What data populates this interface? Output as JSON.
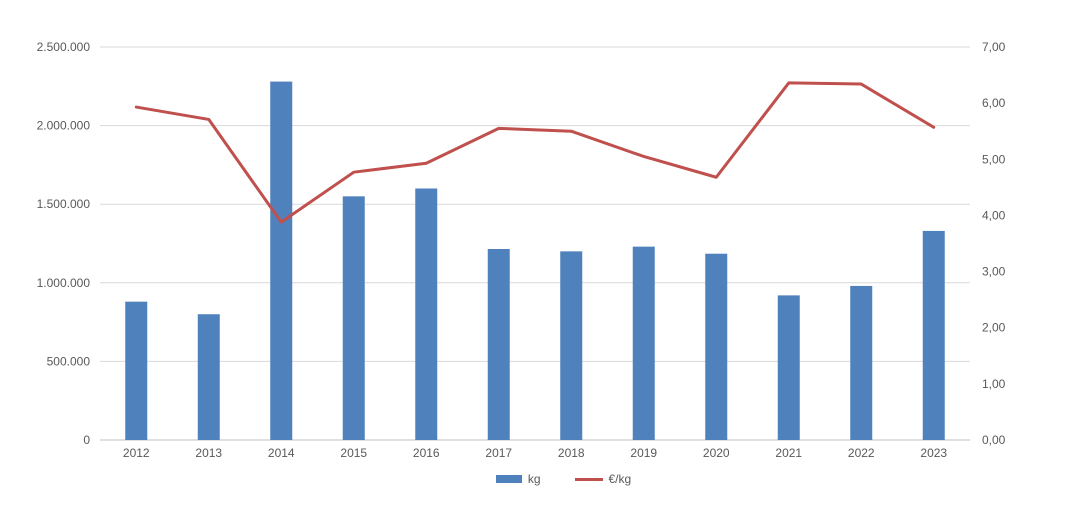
{
  "chart_data": {
    "type": "bar",
    "subtype": "bar-line-combo",
    "title": "",
    "xlabel": "",
    "ylabel_left": "",
    "ylabel_right": "",
    "categories": [
      "2012",
      "2013",
      "2014",
      "2015",
      "2016",
      "2017",
      "2018",
      "2019",
      "2020",
      "2021",
      "2022",
      "2023"
    ],
    "series": [
      {
        "name": "kg",
        "type": "bar",
        "axis": "left",
        "color": "#4F81BD",
        "values": [
          880000,
          800000,
          2280000,
          1550000,
          1600000,
          1215000,
          1200000,
          1230000,
          1185000,
          920000,
          980000,
          1330000
        ]
      },
      {
        "name": "€/kg",
        "type": "line",
        "axis": "right",
        "color": "#C0504D",
        "values": [
          5.93,
          5.71,
          3.88,
          4.77,
          4.93,
          5.55,
          5.5,
          5.05,
          4.68,
          6.36,
          6.34,
          5.57
        ]
      }
    ],
    "y_left": {
      "min": 0,
      "max": 2500000,
      "tick_step": 500000,
      "tick_values": [
        0,
        500000,
        1000000,
        1500000,
        2000000,
        2500000
      ],
      "tick_labels": [
        "0",
        "500.000",
        "1.000.000",
        "1.500.000",
        "2.000.000",
        "2.500.000"
      ]
    },
    "y_right": {
      "min": 0,
      "max": 7,
      "tick_step": 1,
      "tick_values": [
        0,
        1,
        2,
        3,
        4,
        5,
        6,
        7
      ],
      "tick_labels": [
        "0,00",
        "1,00",
        "2,00",
        "3,00",
        "4,00",
        "5,00",
        "6,00",
        "7,00"
      ],
      "gridlines": false
    },
    "grid": "horizontal",
    "legend_position": "bottom-center",
    "colors": {
      "bar": "#4F81BD",
      "line": "#C0504D",
      "gridline": "#D9D9D9",
      "axis_line": "#BFBFBF",
      "tick_text": "#595959",
      "background": "#FFFFFF"
    }
  },
  "legend": {
    "items": [
      {
        "label": "kg",
        "color": "#4F81BD",
        "marker": "bar"
      },
      {
        "label": "€/kg",
        "color": "#C0504D",
        "marker": "line"
      }
    ]
  }
}
